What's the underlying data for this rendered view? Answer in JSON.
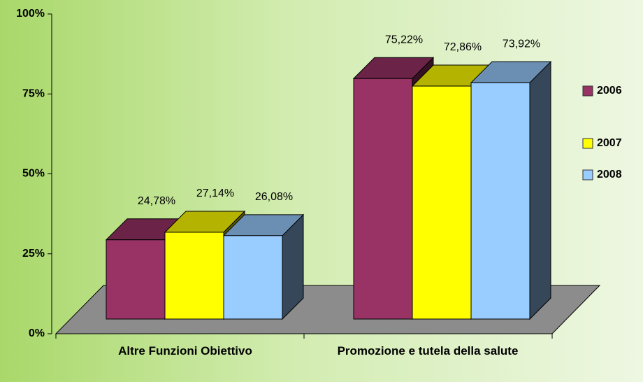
{
  "chart_data": {
    "type": "bar3d",
    "categories": [
      "Altre Funzioni Obiettivo",
      "Promozione e tutela della salute"
    ],
    "series": [
      {
        "name": "2006",
        "color": "#993366",
        "values": [
          24.78,
          75.22
        ],
        "value_labels": [
          "24,78%",
          "75,22%"
        ]
      },
      {
        "name": "2007",
        "color": "#ffff00",
        "values": [
          27.14,
          72.86
        ],
        "value_labels": [
          "27,14%",
          "72,86%"
        ]
      },
      {
        "name": "2008",
        "color": "#99ccff",
        "values": [
          26.08,
          73.92
        ],
        "value_labels": [
          "26,08%",
          "73,92%"
        ]
      }
    ],
    "ylim": [
      0,
      100
    ],
    "yticks": [
      {
        "value": 0,
        "label": "0%"
      },
      {
        "value": 25,
        "label": "25%"
      },
      {
        "value": 50,
        "label": "50%"
      },
      {
        "value": 75,
        "label": "75%"
      },
      {
        "value": 100,
        "label": "100%"
      }
    ],
    "legend": "right"
  }
}
